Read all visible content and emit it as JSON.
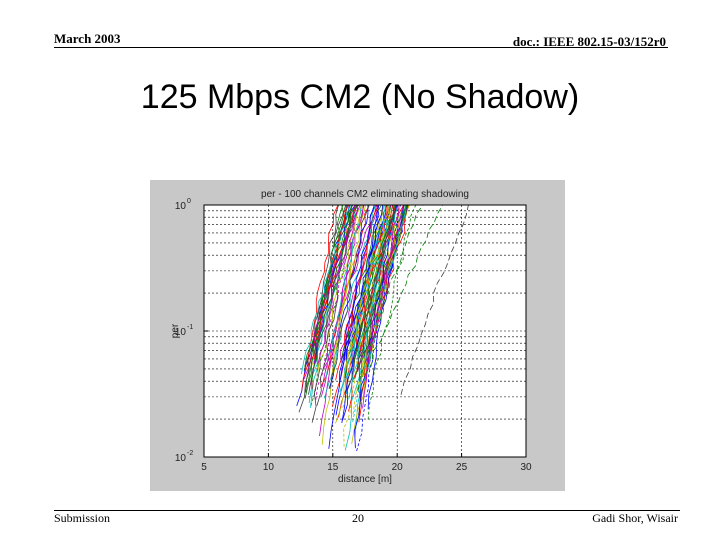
{
  "header": {
    "date": "March 2003",
    "doc_id": "doc.: IEEE 802.15-03/152r0"
  },
  "slide": {
    "title": "125 Mbps CM2 (No Shadow)"
  },
  "footer": {
    "left": "Submission",
    "page": "20",
    "author": "Gadi Shor, Wisair"
  },
  "colors": {
    "figure_bg": "#c8c8c8",
    "plot_bg": "#ffffff",
    "grid": "#000000",
    "series_palette": [
      "#0000ff",
      "#008000",
      "#ff0000",
      "#00bfbf",
      "#bf00bf",
      "#bfbf00",
      "#404040"
    ]
  },
  "chart_data": {
    "type": "line",
    "title": "per - 100 channels CM2 eliminating shadowing",
    "xlabel": "distance [m]",
    "ylabel": "per",
    "xlim": [
      5,
      30
    ],
    "ylim": [
      0.01,
      1
    ],
    "yscale": "log",
    "x_ticks": [
      "5",
      "10",
      "15",
      "20",
      "25",
      "30"
    ],
    "y_ticks": [
      {
        "base": "10",
        "exp": "0",
        "value": 1
      },
      {
        "base": "10",
        "exp": "-1",
        "value": 0.1
      },
      {
        "base": "10",
        "exp": "-2",
        "value": 0.01
      }
    ],
    "grid": true,
    "series_count": 100,
    "series_shape": "packet error rate falls from 1 toward 0.01 as distance decreases; most channels drop between about 12.5 m and 19 m, outliers extend to about 29 m",
    "series": [
      {
        "x": [
          12.3,
          12.9,
          13.5,
          14.1,
          14.7,
          15.4
        ],
        "y": [
          0.015,
          0.03,
          0.08,
          0.2,
          0.5,
          0.97
        ]
      },
      {
        "x": [
          12.8,
          13.4,
          14.0,
          14.6,
          15.3,
          16.0
        ],
        "y": [
          0.015,
          0.03,
          0.08,
          0.2,
          0.5,
          0.97
        ]
      },
      {
        "x": [
          13.4,
          14.0,
          14.6,
          15.2,
          15.9,
          16.6
        ],
        "y": [
          0.015,
          0.03,
          0.08,
          0.2,
          0.5,
          0.97
        ]
      },
      {
        "x": [
          14.0,
          14.6,
          15.2,
          15.9,
          16.6,
          17.4
        ],
        "y": [
          0.015,
          0.03,
          0.08,
          0.2,
          0.5,
          0.97
        ]
      },
      {
        "x": [
          14.8,
          15.4,
          16.0,
          16.7,
          17.4,
          18.2
        ],
        "y": [
          0.015,
          0.03,
          0.08,
          0.2,
          0.5,
          0.97
        ]
      },
      {
        "x": [
          15.6,
          16.2,
          16.8,
          17.5,
          18.2,
          19.0
        ],
        "y": [
          0.015,
          0.03,
          0.08,
          0.2,
          0.5,
          0.97
        ]
      },
      {
        "x": [
          17.6,
          18.3,
          19.0,
          19.8,
          20.6,
          21.8
        ],
        "y": [
          0.015,
          0.03,
          0.08,
          0.2,
          0.5,
          0.97
        ]
      },
      {
        "x": [
          20.3,
          21.0,
          22.0,
          23.2,
          24.6,
          26.2
        ],
        "y": [
          0.015,
          0.03,
          0.08,
          0.2,
          0.5,
          0.97
        ]
      }
    ]
  }
}
